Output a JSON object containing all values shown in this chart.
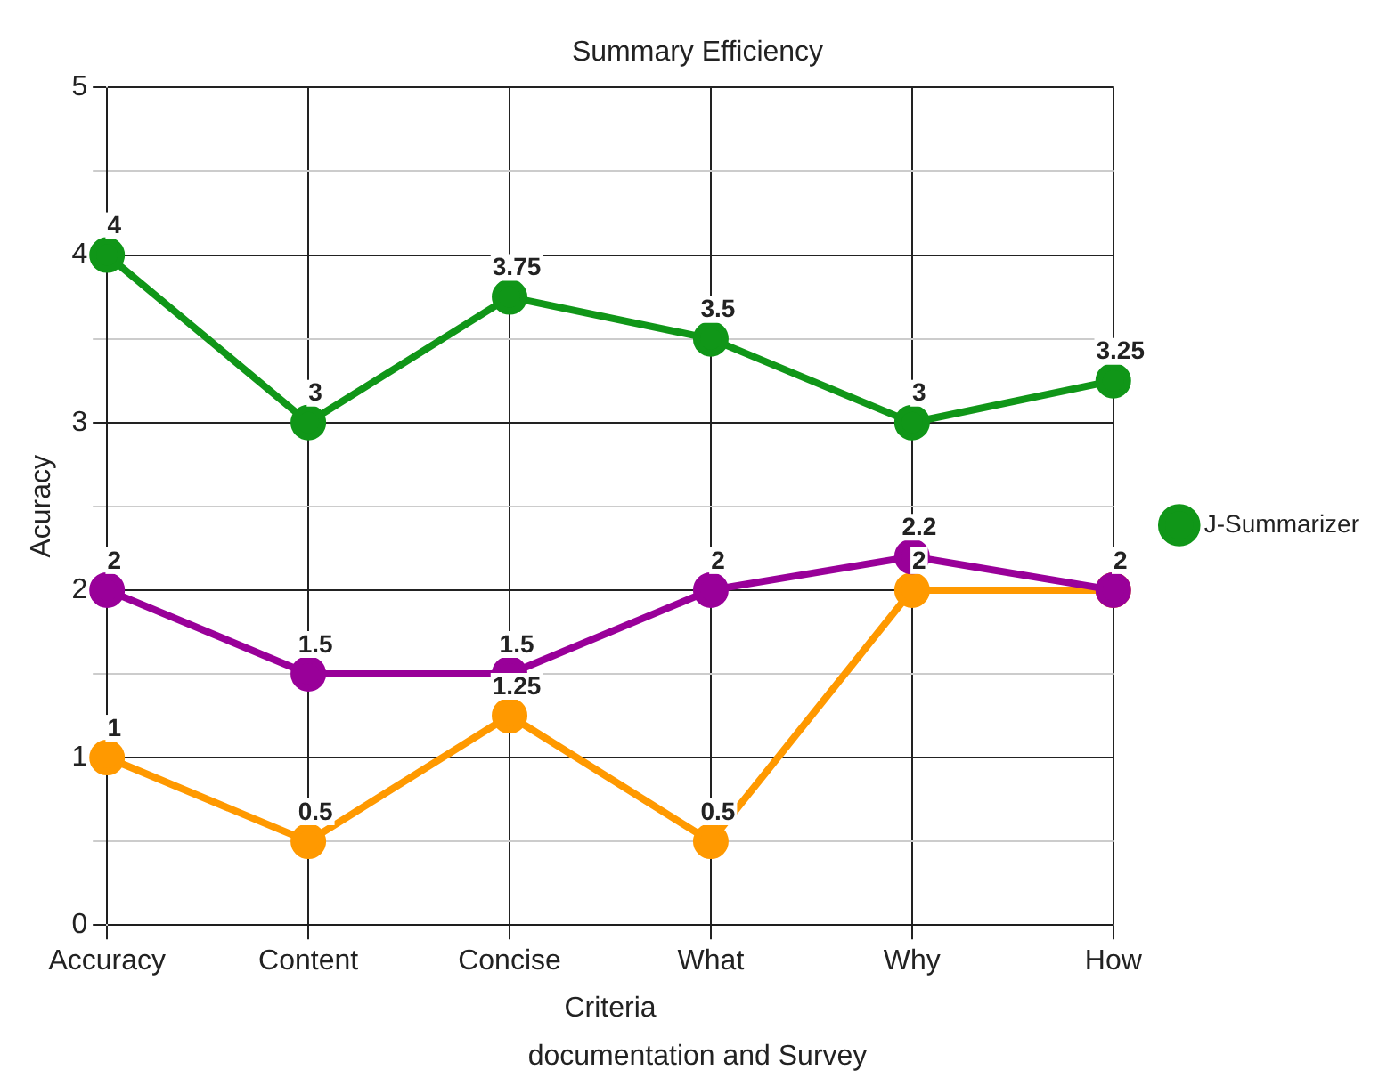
{
  "chart_data": {
    "type": "line",
    "title": "Summary Efficiency",
    "xlabel": "Criteria",
    "ylabel": "Acuracy",
    "categories": [
      "Accuracy",
      "Content",
      "Concise",
      "What",
      "Why",
      "How"
    ],
    "series": [
      {
        "name": "J-Summarizer",
        "color": "#109618",
        "values": [
          4,
          3,
          3.75,
          3.5,
          3,
          3.25
        ],
        "value_labels": [
          "4",
          "3",
          "3.75",
          "3.5",
          "3",
          "3.25"
        ]
      },
      {
        "color": "#990099",
        "values": [
          2,
          1.5,
          1.5,
          2,
          2.2,
          2
        ],
        "value_labels": [
          "2",
          "1.5",
          "1.5",
          "2",
          "2.2",
          "2"
        ]
      },
      {
        "color": "#ff9900",
        "values": [
          1,
          0.5,
          1.25,
          0.5,
          2,
          2
        ],
        "value_labels": [
          "1",
          "0.5",
          "1.25",
          "0.5",
          "2",
          null
        ]
      }
    ],
    "ylim": [
      0,
      5
    ],
    "yticks": [
      0,
      {
        "value": 0.5,
        "label": null
      },
      1,
      {
        "value": 1.5,
        "label": null
      },
      2,
      {
        "value": 2.5,
        "label": null
      },
      3,
      {
        "value": 3.5,
        "label": null
      },
      4,
      {
        "value": 4.5,
        "label": null
      },
      5
    ],
    "grid": true,
    "legend": "right",
    "marker": "circle",
    "line_style": "solid",
    "annotations": [
      "documentation and Survey"
    ]
  }
}
